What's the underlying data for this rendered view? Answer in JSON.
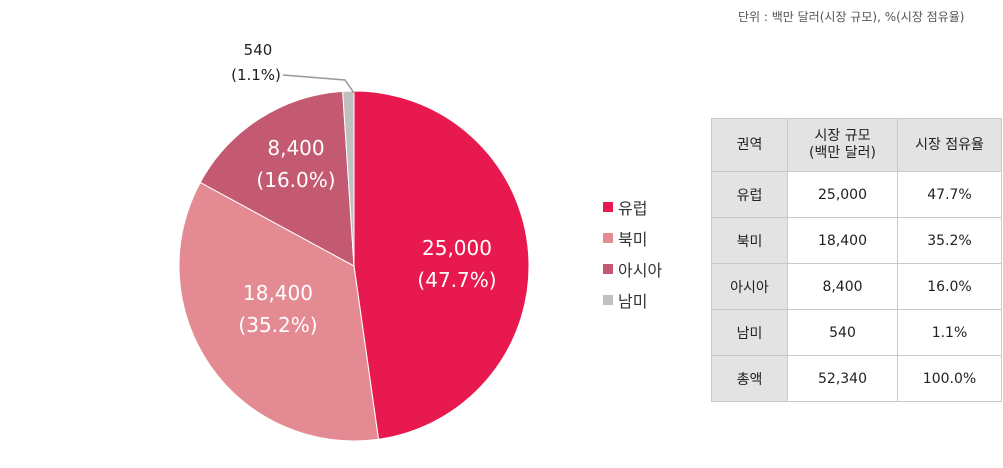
{
  "unit_note": "단위 : 백만 달러(시장 규모), %(시장 점유율)",
  "colors": {
    "europe": "#e8194f",
    "north_america": "#e48a93",
    "asia": "#c45a72",
    "south_america": "#c0c0c0",
    "slice_label_light": "#ffffff",
    "callout_line": "#999999"
  },
  "chart_data": {
    "type": "pie",
    "categories": [
      "유럽",
      "북미",
      "아시아",
      "남미"
    ],
    "values": [
      25000,
      18400,
      8400,
      540
    ],
    "percent_labels": [
      "(47.7%)",
      "(35.2%)",
      "(16.0%)",
      "(1.1%)"
    ],
    "value_labels": [
      "25,000",
      "18,400",
      "8,400",
      "540"
    ],
    "legend": [
      "유럽",
      "북미",
      "아시아",
      "남미"
    ],
    "legend_position": "right"
  },
  "table": {
    "headers": [
      "권역",
      "시장 규모\n(백만 달러)",
      "시장 점유율"
    ],
    "rows": [
      [
        "유럽",
        "25,000",
        "47.7%"
      ],
      [
        "북미",
        "18,400",
        "35.2%"
      ],
      [
        "아시아",
        "8,400",
        "16.0%"
      ],
      [
        "남미",
        "540",
        "1.1%"
      ],
      [
        "총액",
        "52,340",
        "100.0%"
      ]
    ]
  }
}
